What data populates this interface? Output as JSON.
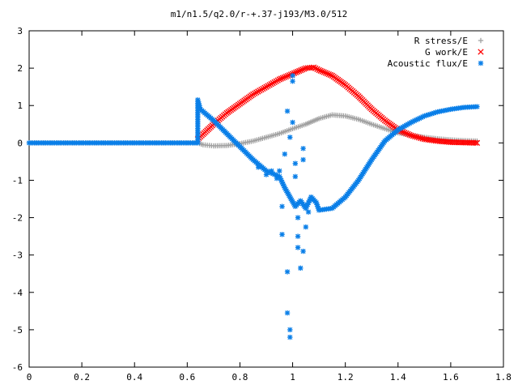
{
  "chart_data": {
    "type": "scatter",
    "title": "m1/n1.5/q2.0/r-+.37-j193/M3.0/512",
    "xlabel": "",
    "ylabel": "",
    "xlim": [
      0,
      1.8
    ],
    "ylim": [
      -6,
      3
    ],
    "xticks": [
      "0",
      "0.2",
      "0.4",
      "0.6",
      "0.8",
      "1",
      "1.2",
      "1.4",
      "1.6",
      "1.8"
    ],
    "yticks": [
      "3",
      "2",
      "1",
      "0",
      "-1",
      "-2",
      "-3",
      "-4",
      "-5",
      "-6"
    ],
    "grid": false,
    "legend_position": "top-right",
    "series": [
      {
        "name": "R stress/E",
        "marker": "+",
        "color": "#a0a0a0",
        "points": [
          [
            0.0,
            0.0
          ],
          [
            0.2,
            0.0
          ],
          [
            0.4,
            0.0
          ],
          [
            0.64,
            0.0
          ],
          [
            0.66,
            -0.05
          ],
          [
            0.7,
            -0.08
          ],
          [
            0.75,
            -0.07
          ],
          [
            0.8,
            -0.02
          ],
          [
            0.85,
            0.05
          ],
          [
            0.9,
            0.15
          ],
          [
            0.95,
            0.25
          ],
          [
            1.0,
            0.38
          ],
          [
            1.05,
            0.5
          ],
          [
            1.1,
            0.65
          ],
          [
            1.15,
            0.75
          ],
          [
            1.2,
            0.72
          ],
          [
            1.25,
            0.63
          ],
          [
            1.3,
            0.5
          ],
          [
            1.35,
            0.38
          ],
          [
            1.4,
            0.27
          ],
          [
            1.45,
            0.2
          ],
          [
            1.5,
            0.15
          ],
          [
            1.55,
            0.11
          ],
          [
            1.6,
            0.08
          ],
          [
            1.65,
            0.06
          ],
          [
            1.7,
            0.05
          ]
        ]
      },
      {
        "name": "G work/E",
        "marker": "x",
        "color": "#ff0000",
        "points": [
          [
            0.64,
            0.1
          ],
          [
            0.7,
            0.5
          ],
          [
            0.75,
            0.8
          ],
          [
            0.8,
            1.05
          ],
          [
            0.85,
            1.3
          ],
          [
            0.9,
            1.5
          ],
          [
            0.95,
            1.7
          ],
          [
            1.0,
            1.85
          ],
          [
            1.05,
            2.0
          ],
          [
            1.08,
            2.02
          ],
          [
            1.1,
            1.95
          ],
          [
            1.15,
            1.8
          ],
          [
            1.2,
            1.55
          ],
          [
            1.25,
            1.25
          ],
          [
            1.3,
            0.9
          ],
          [
            1.35,
            0.6
          ],
          [
            1.4,
            0.35
          ],
          [
            1.45,
            0.2
          ],
          [
            1.5,
            0.1
          ],
          [
            1.55,
            0.05
          ],
          [
            1.6,
            0.02
          ],
          [
            1.65,
            0.01
          ],
          [
            1.7,
            0.0
          ]
        ]
      },
      {
        "name": "Acoustic flux/E",
        "marker": "*",
        "color": "#0a7fe8",
        "points": [
          [
            0.0,
            0.0
          ],
          [
            0.2,
            0.0
          ],
          [
            0.4,
            0.0
          ],
          [
            0.64,
            0.0
          ],
          [
            0.64,
            1.15
          ],
          [
            0.65,
            0.9
          ],
          [
            0.7,
            0.6
          ],
          [
            0.75,
            0.25
          ],
          [
            0.8,
            -0.1
          ],
          [
            0.85,
            -0.45
          ],
          [
            0.9,
            -0.75
          ],
          [
            0.95,
            -0.9
          ],
          [
            0.97,
            -1.2
          ],
          [
            0.99,
            -1.45
          ],
          [
            1.01,
            -1.7
          ],
          [
            1.03,
            -1.55
          ],
          [
            1.05,
            -1.75
          ],
          [
            1.07,
            -1.45
          ],
          [
            1.09,
            -1.6
          ],
          [
            1.1,
            -1.8
          ],
          [
            1.15,
            -1.75
          ],
          [
            1.2,
            -1.45
          ],
          [
            1.25,
            -1.0
          ],
          [
            1.3,
            -0.45
          ],
          [
            1.35,
            0.05
          ],
          [
            1.4,
            0.35
          ],
          [
            1.45,
            0.55
          ],
          [
            1.5,
            0.72
          ],
          [
            1.55,
            0.83
          ],
          [
            1.6,
            0.9
          ],
          [
            1.65,
            0.95
          ],
          [
            1.7,
            0.97
          ],
          [
            0.87,
            -0.65
          ],
          [
            0.9,
            -0.85
          ],
          [
            0.92,
            -0.75
          ],
          [
            0.94,
            -0.95
          ],
          [
            0.95,
            -0.75
          ],
          [
            0.96,
            -1.7
          ],
          [
            0.96,
            -2.45
          ],
          [
            0.97,
            -0.3
          ],
          [
            0.98,
            0.85
          ],
          [
            0.98,
            -3.45
          ],
          [
            0.98,
            -4.55
          ],
          [
            0.99,
            -5.0
          ],
          [
            0.99,
            -5.2
          ],
          [
            0.99,
            0.15
          ],
          [
            1.0,
            1.65
          ],
          [
            1.0,
            1.8
          ],
          [
            1.0,
            0.55
          ],
          [
            1.01,
            -0.55
          ],
          [
            1.01,
            -0.9
          ],
          [
            1.02,
            -2.0
          ],
          [
            1.02,
            -2.5
          ],
          [
            1.02,
            -2.8
          ],
          [
            1.03,
            -3.35
          ],
          [
            1.04,
            -0.15
          ],
          [
            1.04,
            -0.45
          ],
          [
            1.04,
            -2.9
          ],
          [
            1.05,
            -2.25
          ],
          [
            1.06,
            -1.85
          ]
        ]
      }
    ]
  },
  "legend": {
    "items": [
      {
        "label": "R stress/E",
        "marker": "+",
        "color": "#a0a0a0"
      },
      {
        "label": "G work/E",
        "marker": "x",
        "color": "#ff0000"
      },
      {
        "label": "Acoustic flux/E",
        "marker": "*",
        "color": "#0a7fe8"
      }
    ]
  }
}
